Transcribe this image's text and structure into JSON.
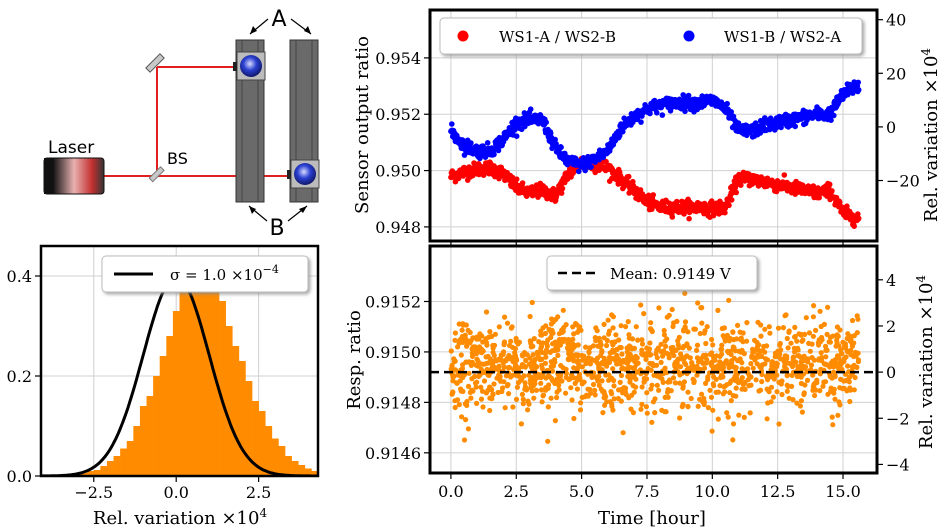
{
  "diagram": {
    "laser_label": "Laser",
    "bs_label": "BS",
    "a_label": "A",
    "b_label": "B"
  },
  "chart_data": [
    {
      "id": "top",
      "type": "scatter",
      "xlim": [
        -0.8,
        16.3
      ],
      "ylim": [
        0.9475,
        0.9557
      ],
      "yticks": [
        0.948,
        0.95,
        0.952,
        0.954
      ],
      "ytick_labels": [
        "0.948",
        "0.950",
        "0.952",
        "0.954"
      ],
      "ylabel": "Sensor output ratio",
      "y2ticks": [
        -20,
        0,
        20,
        40
      ],
      "y2tick_labels": [
        "−20",
        "0",
        "20",
        "40"
      ],
      "y2label": "Rel. variation ×10",
      "y2label_exp": "4",
      "grid": true,
      "legend_position": "top",
      "series": [
        {
          "name": "WS1-A / WS2-B",
          "color": "#ff0000",
          "x": [
            0,
            0.5,
            1,
            1.5,
            2,
            2.5,
            3,
            3.5,
            4,
            4.5,
            5,
            5.5,
            6,
            6.5,
            7,
            7.5,
            8,
            8.5,
            9,
            9.5,
            10,
            10.5,
            11,
            11.5,
            12,
            12.5,
            13,
            13.5,
            14,
            14.5,
            15,
            15.5
          ],
          "y": [
            0.9498,
            0.94995,
            0.95005,
            0.9501,
            0.9499,
            0.9494,
            0.9492,
            0.9493,
            0.9491,
            0.9499,
            0.9503,
            0.9502,
            0.9501,
            0.9497,
            0.9493,
            0.9489,
            0.9487,
            0.9487,
            0.9487,
            0.9487,
            0.94865,
            0.9487,
            0.9497,
            0.9497,
            0.9496,
            0.9495,
            0.9494,
            0.9493,
            0.9492,
            0.9493,
            0.9485,
            0.9483
          ]
        },
        {
          "name": "WS1-B / WS2-A",
          "color": "#0000ff",
          "x": [
            0,
            0.5,
            1,
            1.5,
            2,
            2.5,
            3,
            3.5,
            4,
            4.5,
            5,
            5.5,
            6,
            6.5,
            7,
            7.5,
            8,
            8.5,
            9,
            9.5,
            10,
            10.5,
            11,
            11.5,
            12,
            12.5,
            13,
            13.5,
            14,
            14.5,
            15,
            15.5
          ],
          "y": [
            0.9514,
            0.9509,
            0.9507,
            0.9507,
            0.9511,
            0.9517,
            0.9518,
            0.9518,
            0.9508,
            0.9503,
            0.9502,
            0.9504,
            0.9507,
            0.9515,
            0.9519,
            0.9522,
            0.9523,
            0.9524,
            0.9524,
            0.9524,
            0.9525,
            0.9522,
            0.9514,
            0.9514,
            0.9516,
            0.9517,
            0.9518,
            0.9519,
            0.952,
            0.952,
            0.9527,
            0.953
          ]
        }
      ]
    },
    {
      "id": "bottom",
      "type": "scatter",
      "xlim": [
        -0.8,
        16.3
      ],
      "ylim": [
        0.91452,
        0.91542
      ],
      "xticks": [
        0,
        2.5,
        5,
        7.5,
        10,
        12.5,
        15
      ],
      "xtick_labels": [
        "0.0",
        "2.5",
        "5.0",
        "7.5",
        "10.0",
        "12.5",
        "15.0"
      ],
      "yticks": [
        0.9146,
        0.9148,
        0.915,
        0.9152
      ],
      "ytick_labels": [
        "0.9146",
        "0.9148",
        "0.9150",
        "0.9152"
      ],
      "xlabel": "Time [hour]",
      "ylabel": "Resp. ratio",
      "y2ticks": [
        -4,
        -2,
        0,
        2,
        4
      ],
      "y2tick_labels": [
        "−4",
        "−2",
        "0",
        "2",
        "4"
      ],
      "y2label": "Rel. variation ×10",
      "y2label_exp": "4",
      "grid": true,
      "mean_line": {
        "y": 0.91492,
        "label": "Mean: 0.9149 V"
      },
      "series": [
        {
          "name": "",
          "color": "#ff8c00",
          "x_range": [
            0,
            15.6
          ],
          "mean": 0.91495,
          "std": 9e-05
        }
      ]
    },
    {
      "id": "hist",
      "type": "histogram",
      "xlim": [
        -4.1,
        4.3
      ],
      "ylim": [
        0,
        0.46
      ],
      "xticks": [
        -2.5,
        0,
        2.5
      ],
      "xtick_labels": [
        "−2.5",
        "0.0",
        "2.5"
      ],
      "yticks": [
        0,
        0.2,
        0.4
      ],
      "ytick_labels": [
        "0.0",
        "0.2",
        "0.4"
      ],
      "xlabel": "Rel. variation ×10",
      "xlabel_exp": "4",
      "grid": true,
      "bar_color": "#ff8c00",
      "bin_width": 0.2,
      "bins_start": -3.5,
      "density": [
        0.002,
        0.004,
        0.004,
        0.006,
        0.01,
        0.012,
        0.02,
        0.03,
        0.04,
        0.055,
        0.07,
        0.1,
        0.14,
        0.16,
        0.2,
        0.24,
        0.28,
        0.33,
        0.37,
        0.395,
        0.43,
        0.42,
        0.4,
        0.37,
        0.35,
        0.3,
        0.26,
        0.23,
        0.19,
        0.15,
        0.13,
        0.1,
        0.075,
        0.06,
        0.04,
        0.03,
        0.022,
        0.015,
        0.01,
        0.006
      ],
      "fit": {
        "type": "gaussian",
        "mean": 0.0,
        "sigma": 1.0,
        "color": "#000000"
      },
      "legend": {
        "label": "σ = 1.0 ×10",
        "exp": "−4",
        "position": "top-right"
      }
    }
  ]
}
